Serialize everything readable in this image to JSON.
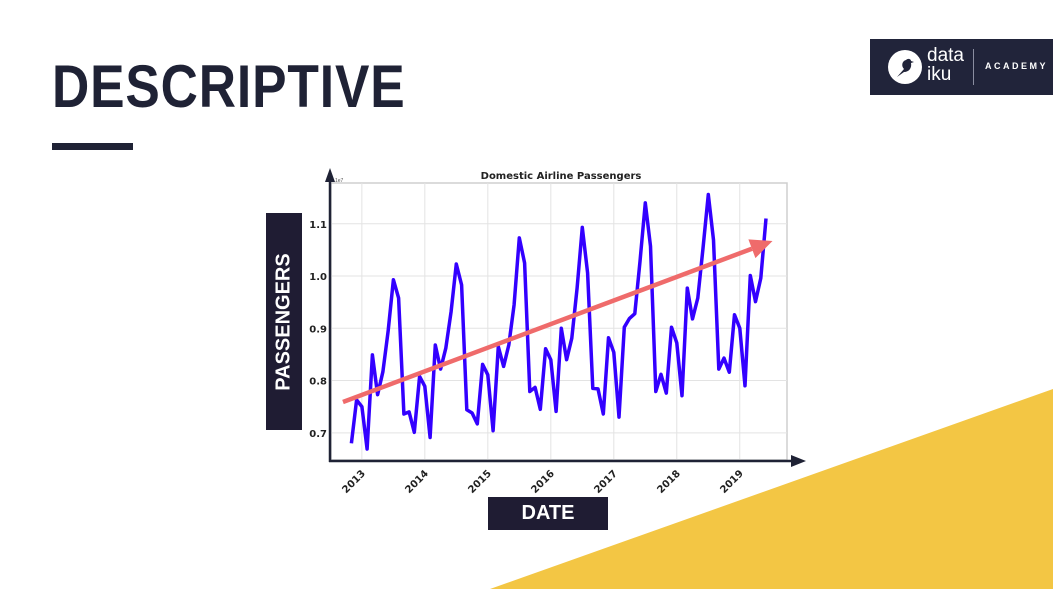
{
  "slide": {
    "title": "DESCRIPTIVE",
    "accent_color": "#f3c644",
    "dark_color": "#1f2235"
  },
  "logo": {
    "line1": "data",
    "line2": "iku",
    "tagline": "ACADEMY"
  },
  "axis_boxes": {
    "y": "PASSENGERS",
    "x": "DATE"
  },
  "chart_data": {
    "type": "line",
    "title": "Domestic Airline Passengers",
    "xlabel": "DATE",
    "ylabel": "PASSENGERS",
    "y_offset_text": "1e7",
    "x_start": "2012-11",
    "x_step": "month",
    "xlim": [
      2012.51,
      2019.75
    ],
    "ylim": [
      0.648,
      1.178
    ],
    "x_ticks": [
      2013,
      2014,
      2015,
      2016,
      2017,
      2018,
      2019
    ],
    "x_tick_labels": [
      "2013",
      "2014",
      "2015",
      "2016",
      "2017",
      "2018",
      "2019"
    ],
    "y_ticks": [
      0.7,
      0.8,
      0.9,
      1.0,
      1.1
    ],
    "y_tick_labels": [
      "0.7",
      "0.8",
      "0.9",
      "1.0",
      "1.1"
    ],
    "grid": true,
    "series": [
      {
        "name": "Passengers",
        "color": "#3300ff",
        "values": [
          0.68,
          0.763,
          0.75,
          0.669,
          0.849,
          0.773,
          0.817,
          0.894,
          0.993,
          0.958,
          0.736,
          0.74,
          0.701,
          0.808,
          0.789,
          0.691,
          0.868,
          0.822,
          0.862,
          0.932,
          1.023,
          0.983,
          0.744,
          0.738,
          0.717,
          0.831,
          0.811,
          0.704,
          0.865,
          0.827,
          0.868,
          0.945,
          1.073,
          1.025,
          0.779,
          0.787,
          0.745,
          0.861,
          0.84,
          0.741,
          0.9,
          0.84,
          0.881,
          0.977,
          1.093,
          1.006,
          0.785,
          0.784,
          0.736,
          0.882,
          0.854,
          0.73,
          0.902,
          0.919,
          0.928,
          1.028,
          1.14,
          1.057,
          0.779,
          0.812,
          0.776,
          0.902,
          0.872,
          0.771,
          0.977,
          0.918,
          0.958,
          1.053,
          1.156,
          1.069,
          0.822,
          0.843,
          0.816,
          0.926,
          0.9,
          0.79,
          1.001,
          0.951,
          0.996,
          1.11
        ]
      }
    ],
    "trend_arrow": {
      "color": "#ef6b6b",
      "start": [
        2012.7,
        0.759
      ],
      "end": [
        2019.52,
        1.067
      ]
    }
  }
}
